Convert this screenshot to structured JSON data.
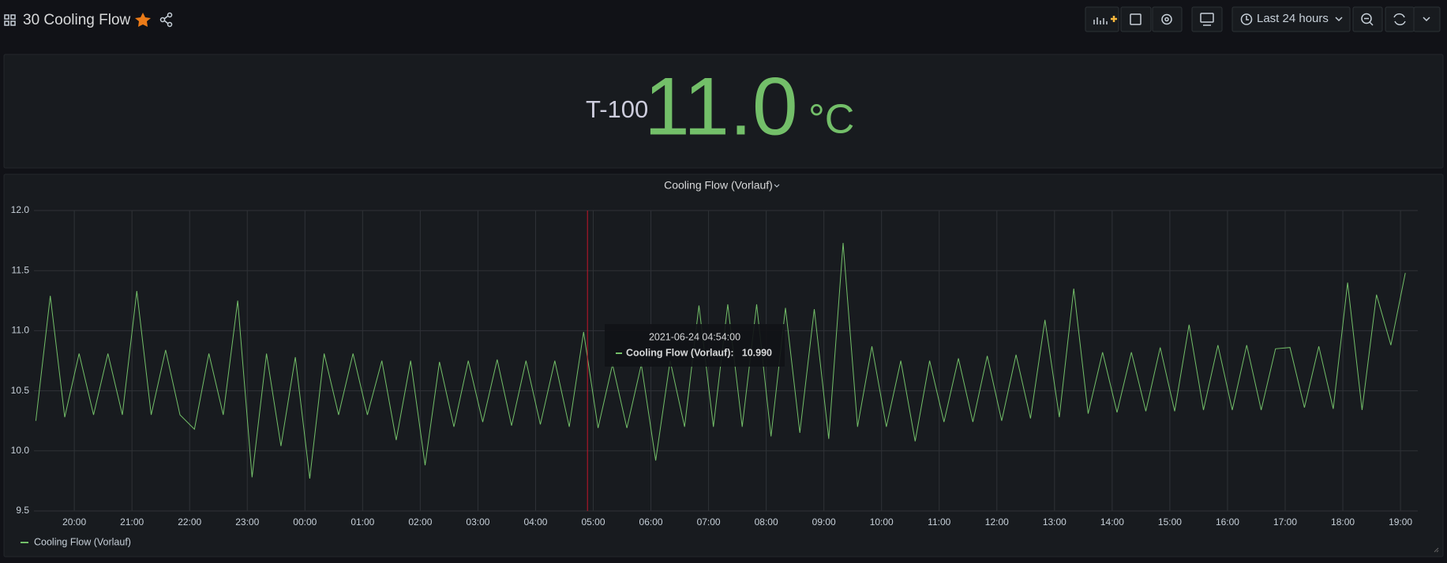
{
  "header": {
    "title": "30 Cooling Flow",
    "time_range": "Last 24 hours"
  },
  "stat": {
    "prefix": "T-100",
    "value": "11.0",
    "unit": "°C"
  },
  "tooltip": {
    "time": "2021-06-24 04:54:00",
    "label": "Cooling Flow (Vorlauf):",
    "value": "10.990"
  },
  "chart_data": {
    "type": "line",
    "title": "Cooling Flow (Vorlauf)",
    "x": [
      "19:20",
      "19:35",
      "19:50",
      "20:05",
      "20:20",
      "20:35",
      "20:50",
      "21:05",
      "21:20",
      "21:35",
      "21:50",
      "22:05",
      "22:20",
      "22:35",
      "22:50",
      "23:05",
      "23:20",
      "23:35",
      "23:50",
      "00:05",
      "00:20",
      "00:35",
      "00:50",
      "01:05",
      "01:20",
      "01:35",
      "01:50",
      "02:05",
      "02:20",
      "02:35",
      "02:50",
      "03:05",
      "03:20",
      "03:35",
      "03:50",
      "04:05",
      "04:20",
      "04:35",
      "04:50",
      "05:05",
      "05:20",
      "05:35",
      "05:50",
      "06:05",
      "06:20",
      "06:35",
      "06:50",
      "07:05",
      "07:20",
      "07:35",
      "07:50",
      "08:05",
      "08:20",
      "08:35",
      "08:50",
      "09:05",
      "09:20",
      "09:35",
      "09:50",
      "10:05",
      "10:20",
      "10:35",
      "10:50",
      "11:05",
      "11:20",
      "11:35",
      "11:50",
      "12:05",
      "12:20",
      "12:35",
      "12:50",
      "13:05",
      "13:20",
      "13:35",
      "13:50",
      "14:05",
      "14:20",
      "14:35",
      "14:50",
      "15:05",
      "15:20",
      "15:35",
      "15:50",
      "16:05",
      "16:20",
      "16:35",
      "16:50",
      "17:05",
      "17:20",
      "17:35",
      "17:50",
      "18:05",
      "18:20",
      "18:35",
      "18:50",
      "19:05"
    ],
    "series": [
      {
        "name": "Cooling Flow (Vorlauf)",
        "color": "#73bf69",
        "values": [
          10.25,
          11.29,
          10.28,
          10.81,
          10.3,
          10.81,
          10.3,
          11.33,
          10.3,
          10.84,
          10.3,
          10.18,
          10.81,
          10.3,
          11.25,
          9.78,
          10.81,
          10.04,
          10.78,
          9.77,
          10.81,
          10.3,
          10.81,
          10.3,
          10.75,
          10.09,
          10.75,
          9.88,
          10.74,
          10.2,
          10.75,
          10.24,
          10.76,
          10.21,
          10.75,
          10.22,
          10.75,
          10.2,
          10.99,
          10.19,
          10.72,
          10.19,
          10.72,
          9.92,
          10.75,
          10.2,
          11.21,
          10.2,
          11.22,
          10.2,
          11.22,
          10.12,
          11.19,
          10.15,
          11.18,
          10.1,
          11.73,
          10.2,
          10.87,
          10.2,
          10.75,
          10.08,
          10.75,
          10.24,
          10.77,
          10.24,
          10.79,
          10.25,
          10.8,
          10.27,
          11.09,
          10.28,
          11.35,
          10.31,
          10.82,
          10.32,
          10.82,
          10.33,
          10.86,
          10.33,
          11.05,
          10.34,
          10.88,
          10.34,
          10.88,
          10.34,
          10.85,
          10.86,
          10.36,
          10.87,
          10.35,
          11.4,
          10.34,
          11.3,
          10.88,
          11.48
        ]
      }
    ],
    "xlim": [
      "19:18",
      "19:18"
    ],
    "xticks": [
      "20:00",
      "21:00",
      "22:00",
      "23:00",
      "00:00",
      "01:00",
      "02:00",
      "03:00",
      "04:00",
      "05:00",
      "06:00",
      "07:00",
      "08:00",
      "09:00",
      "10:00",
      "11:00",
      "12:00",
      "13:00",
      "14:00",
      "15:00",
      "16:00",
      "17:00",
      "18:00",
      "19:00"
    ],
    "ylim": [
      9.5,
      12
    ],
    "yticks": [
      9.5,
      {
        "value": 10,
        "label": "10.0"
      },
      10.5,
      {
        "value": 11,
        "label": "11.0"
      },
      11.5,
      {
        "value": 12,
        "label": "12.0"
      }
    ],
    "grid": true,
    "legend": "bottom-left"
  }
}
